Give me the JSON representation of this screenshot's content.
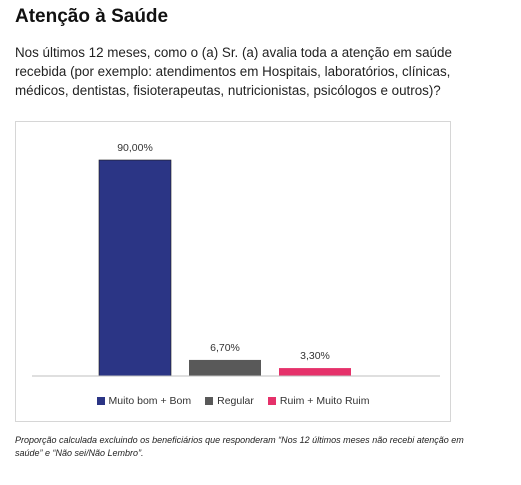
{
  "header": {
    "title": "Atenção à Saúde",
    "question": "Nos últimos 12 meses, como o (a) Sr. (a) avalia toda a atenção em saúde recebida (por exemplo: atendimentos em Hospitais, laboratórios, clínicas, médicos, dentistas, fisioterapeutas, nutricionistas, psicólogos e outros)?"
  },
  "chart_data": {
    "type": "bar",
    "categories": [
      "Muito bom + Bom",
      "Regular",
      "Ruim + Muito Ruim"
    ],
    "values": [
      90.0,
      6.7,
      3.3
    ],
    "data_labels": [
      "90,00%",
      "6,70%",
      "3,30%"
    ],
    "colors": [
      "#2B3585",
      "#595959",
      "#E5316A"
    ],
    "title": "",
    "xlabel": "",
    "ylabel": "",
    "ylim": [
      0,
      100
    ],
    "grid": false,
    "legend_position": "bottom"
  },
  "footnote": "Proporção calculada excluindo os beneficiários que responderam “Nos 12 últimos meses não recebi atenção em saúde” e “Não sei/Não Lembro”."
}
